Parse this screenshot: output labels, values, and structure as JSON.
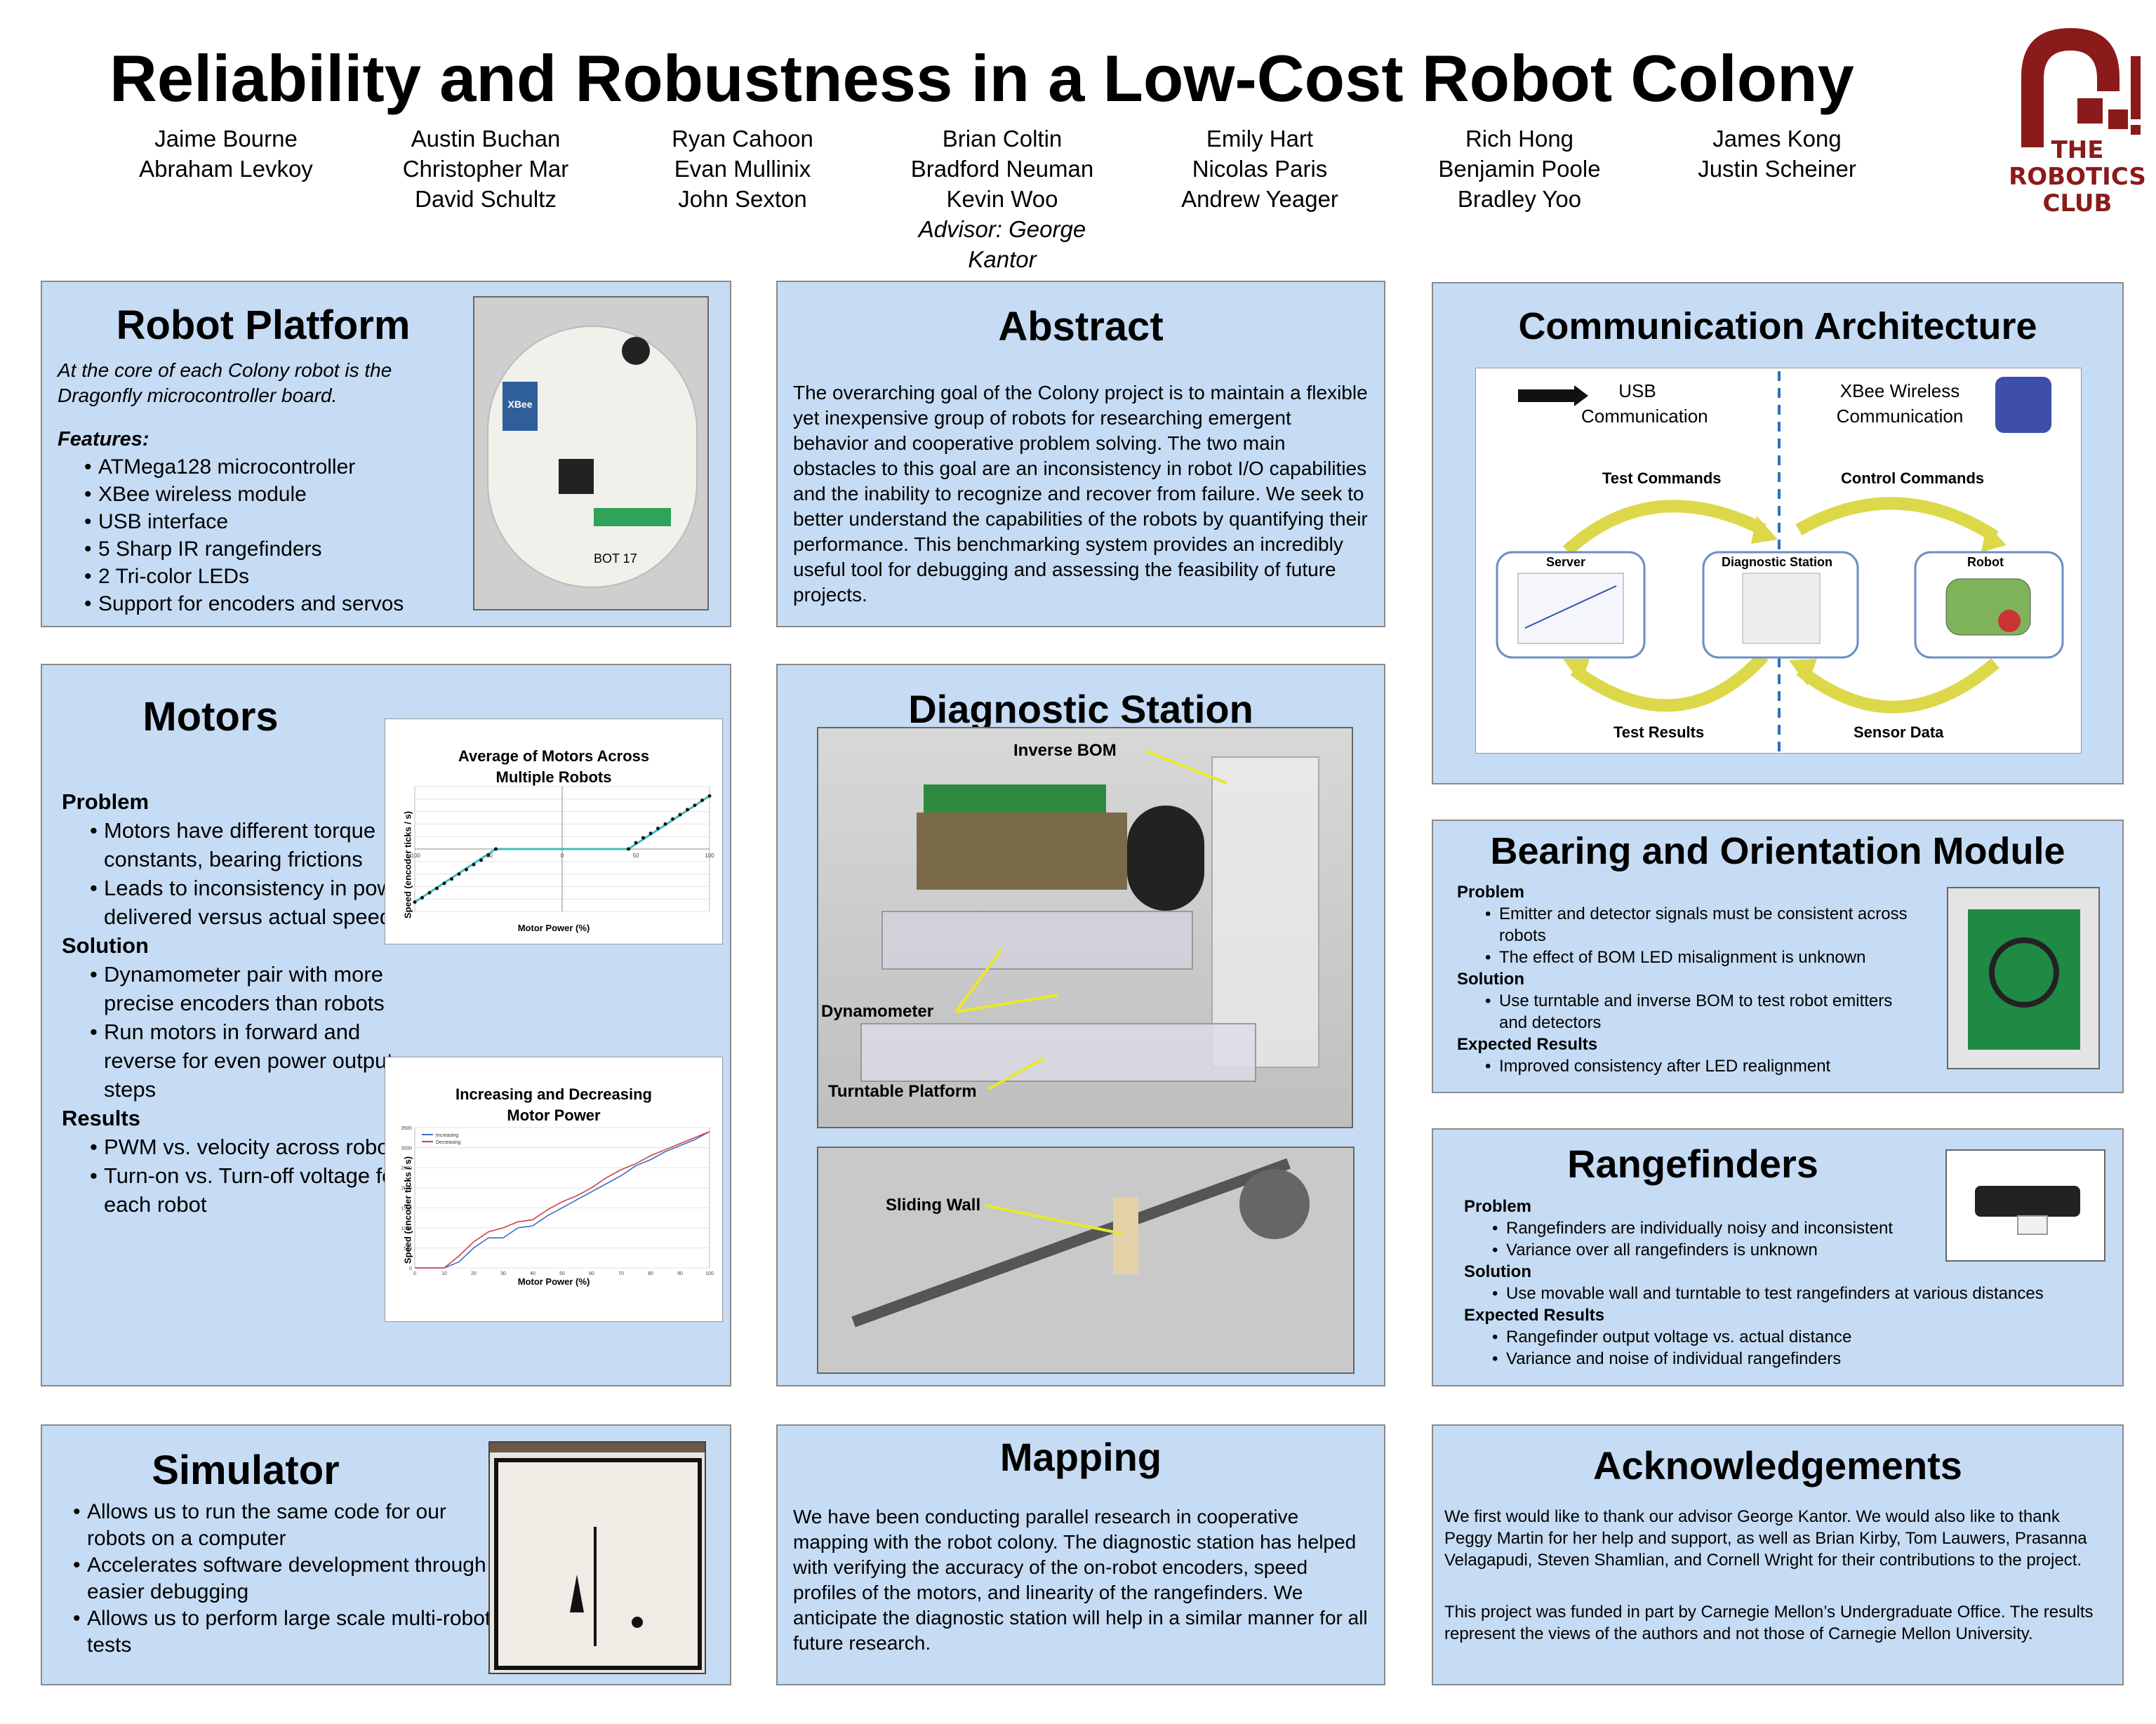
{
  "title": "Reliability and Robustness in a Low-Cost Robot Colony",
  "authors": {
    "col1": [
      "Jaime Bourne",
      "Abraham Levkoy"
    ],
    "col2": [
      "Austin Buchan",
      "Christopher Mar",
      "David Schultz"
    ],
    "col3": [
      "Ryan Cahoon",
      "Evan Mullinix",
      "John Sexton"
    ],
    "col4": [
      "Brian Coltin",
      "Bradford Neuman",
      "Kevin Woo"
    ],
    "col5": [
      "Emily Hart",
      "Nicolas Paris",
      "Andrew Yeager"
    ],
    "col6": [
      "Rich Hong",
      "Benjamin Poole",
      "Bradley Yoo"
    ],
    "col7": [
      "James Kong",
      "Justin Scheiner"
    ],
    "advisor": "Advisor: George Kantor"
  },
  "logo": {
    "line1": "THE",
    "line2": "ROBOTICS",
    "line3": "CLUB",
    "color": "#8b1a1a"
  },
  "robot_platform": {
    "title": "Robot Platform",
    "intro": "At the core of each Colony robot is the Dragonfly microcontroller board.",
    "features_label": "Features:",
    "features": [
      "ATMega128 microcontroller",
      "XBee wireless module",
      "USB interface",
      "5 Sharp IR rangefinders",
      "2 Tri-color LEDs",
      "Support for encoders and servos"
    ],
    "photo_label": "BOT 17",
    "xbee_label": "XBee"
  },
  "abstract": {
    "title": "Abstract",
    "text": "The overarching goal of the Colony project is to maintain a flexible yet inexpensive group of robots for researching emergent behavior and cooperative problem solving. The two main obstacles to this goal are an inconsistency in robot I/O capabilities and the inability to recognize and recover from failure. We seek to better understand the capabilities of the robots by quantifying their performance. This benchmarking system provides an incredibly useful tool for debugging and assessing the feasibility of future projects."
  },
  "comm": {
    "title": "Communication Architecture",
    "usb": "USB Communication",
    "xbee": "XBee Wireless Communication",
    "test_commands": "Test Commands",
    "control_commands": "Control Commands",
    "server": "Server",
    "diag": "Diagnostic Station",
    "robot": "Robot",
    "test_results": "Test Results",
    "sensor_data": "Sensor Data"
  },
  "motors": {
    "title": "Motors",
    "problem_label": "Problem",
    "problem": [
      "Motors have different torque constants, bearing frictions",
      "Leads to inconsistency in power delivered versus actual speed"
    ],
    "solution_label": "Solution",
    "solution": [
      "Dynamometer pair with more precise encoders than robots",
      "Run motors in forward and reverse for even power output steps"
    ],
    "results_label": "Results",
    "results": [
      "PWM vs. velocity across robots",
      "Turn-on vs. Turn-off voltage for each robot"
    ]
  },
  "chart_data": [
    {
      "type": "scatter",
      "title": "Average of Motors Across Multiple Robots",
      "xlabel": "Motor Power (%)",
      "ylabel": "Speed (encoder ticks / s)",
      "xlim": [
        -100,
        100
      ],
      "ylim": [
        -100,
        100
      ],
      "x": [
        -100,
        -95,
        -90,
        -85,
        -80,
        -75,
        -70,
        -65,
        -60,
        -55,
        -50,
        -45,
        45,
        50,
        55,
        60,
        65,
        70,
        75,
        80,
        85,
        90,
        95,
        100
      ],
      "y": [
        -85,
        -78,
        -70,
        -63,
        -55,
        -48,
        -40,
        -33,
        -25,
        -18,
        -10,
        0,
        0,
        10,
        18,
        25,
        33,
        40,
        48,
        55,
        63,
        70,
        78,
        85
      ],
      "fit_line": [
        [
          -100,
          -85
        ],
        [
          -45,
          0
        ],
        [
          45,
          0
        ],
        [
          100,
          85
        ]
      ]
    },
    {
      "type": "line",
      "title": "Increasing and Decreasing Motor Power",
      "xlabel": "Motor Power (%)",
      "ylabel": "Speed (encoder ticks / s)",
      "xlim": [
        0,
        100
      ],
      "ylim": [
        0,
        3500
      ],
      "x": [
        0,
        10,
        15,
        20,
        25,
        30,
        35,
        40,
        45,
        50,
        55,
        60,
        65,
        70,
        75,
        80,
        85,
        90,
        95,
        100
      ],
      "series": [
        {
          "name": "Increasing",
          "color": "#3b6cc9",
          "values": [
            0,
            0,
            150,
            500,
            750,
            750,
            1000,
            1050,
            1300,
            1500,
            1700,
            1900,
            2100,
            2300,
            2550,
            2700,
            2900,
            3050,
            3200,
            3400
          ]
        },
        {
          "name": "Decreasing",
          "color": "#d04040",
          "values": [
            0,
            0,
            300,
            650,
            900,
            1000,
            1150,
            1200,
            1450,
            1650,
            1800,
            2000,
            2250,
            2450,
            2600,
            2800,
            2950,
            3100,
            3250,
            3400
          ]
        }
      ]
    }
  ],
  "diag": {
    "title": "Diagnostic Station",
    "inverse_bom": "Inverse BOM",
    "dynamometer": "Dynamometer",
    "turntable": "Turntable Platform",
    "sliding_wall": "Sliding Wall"
  },
  "bom": {
    "title": "Bearing and Orientation Module",
    "problem_label": "Problem",
    "problem": [
      "Emitter and detector signals must be consistent across robots",
      "The effect of BOM LED misalignment is unknown"
    ],
    "solution_label": "Solution",
    "solution": [
      "Use turntable and inverse BOM to test robot emitters and detectors"
    ],
    "expected_label": "Expected Results",
    "expected": [
      "Improved consistency after LED realignment"
    ]
  },
  "rangefinders": {
    "title": "Rangefinders",
    "problem_label": "Problem",
    "problem": [
      "Rangefinders are individually noisy and inconsistent",
      "Variance over all rangefinders is unknown"
    ],
    "solution_label": "Solution",
    "solution": [
      "Use movable wall and turntable to test rangefinders at various distances"
    ],
    "expected_label": "Expected Results",
    "expected": [
      "Rangefinder output voltage vs. actual distance",
      "Variance and noise of individual rangefinders"
    ]
  },
  "simulator": {
    "title": "Simulator",
    "items": [
      "Allows us to run the same code for our robots on a computer",
      "Accelerates software development through easier debugging",
      "Allows us to perform large scale multi-robot tests"
    ]
  },
  "mapping": {
    "title": "Mapping",
    "text": "We have been conducting parallel research in cooperative mapping with the robot colony. The diagnostic station has helped with verifying the accuracy of the on-robot encoders, speed profiles of the motors, and linearity of the rangefinders. We anticipate the diagnostic station will help in a similar manner for all future research."
  },
  "acknowledgements": {
    "title": "Acknowledgements",
    "p1": "We first would like to thank our advisor George Kantor.  We would also like to thank Peggy Martin for her help and support, as well as Brian Kirby, Tom Lauwers, Prasanna Velagapudi, Steven Shamlian, and Cornell Wright for their contributions to the project.",
    "p2": "This project was funded in part by Carnegie Mellon’s Undergraduate Office. The results represent the views of the authors and not those of Carnegie Mellon University."
  }
}
